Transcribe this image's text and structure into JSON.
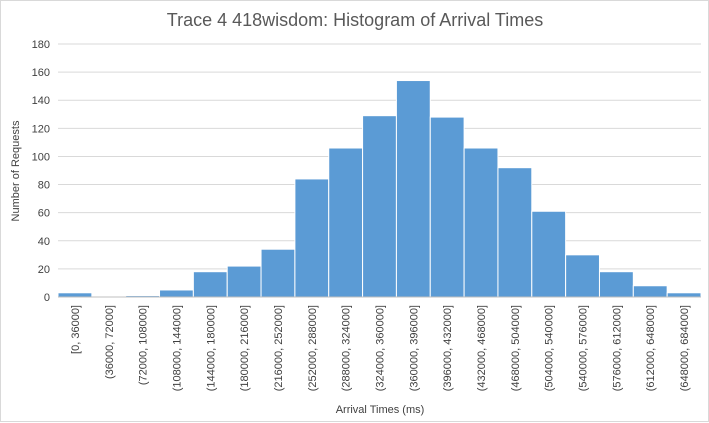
{
  "chart_data": {
    "type": "bar",
    "title": "Trace 4 418wisdom: Histogram of Arrival Times",
    "xlabel": "Arrival Times (ms)",
    "ylabel": "Number of Requests",
    "ylim": [
      0,
      180
    ],
    "yticks": [
      0,
      20,
      40,
      60,
      80,
      100,
      120,
      140,
      160,
      180
    ],
    "grid": true,
    "legend": "none",
    "bar_color": "#5b9bd5",
    "categories": [
      "[0, 36000]",
      "(36000, 72000]",
      "(72000, 108000]",
      "(108000, 144000]",
      "(144000, 180000]",
      "(180000, 216000]",
      "(216000, 252000]",
      "(252000, 288000]",
      "(288000, 324000]",
      "(324000, 360000]",
      "(360000, 396000]",
      "(396000, 432000]",
      "(432000, 468000]",
      "(468000, 504000]",
      "(504000, 540000]",
      "(540000, 576000]",
      "(576000, 612000]",
      "(612000, 648000]",
      "(648000, 684000]"
    ],
    "values": [
      3,
      0,
      1,
      5,
      18,
      22,
      34,
      84,
      106,
      129,
      154,
      128,
      106,
      92,
      61,
      30,
      18,
      8,
      3
    ]
  }
}
